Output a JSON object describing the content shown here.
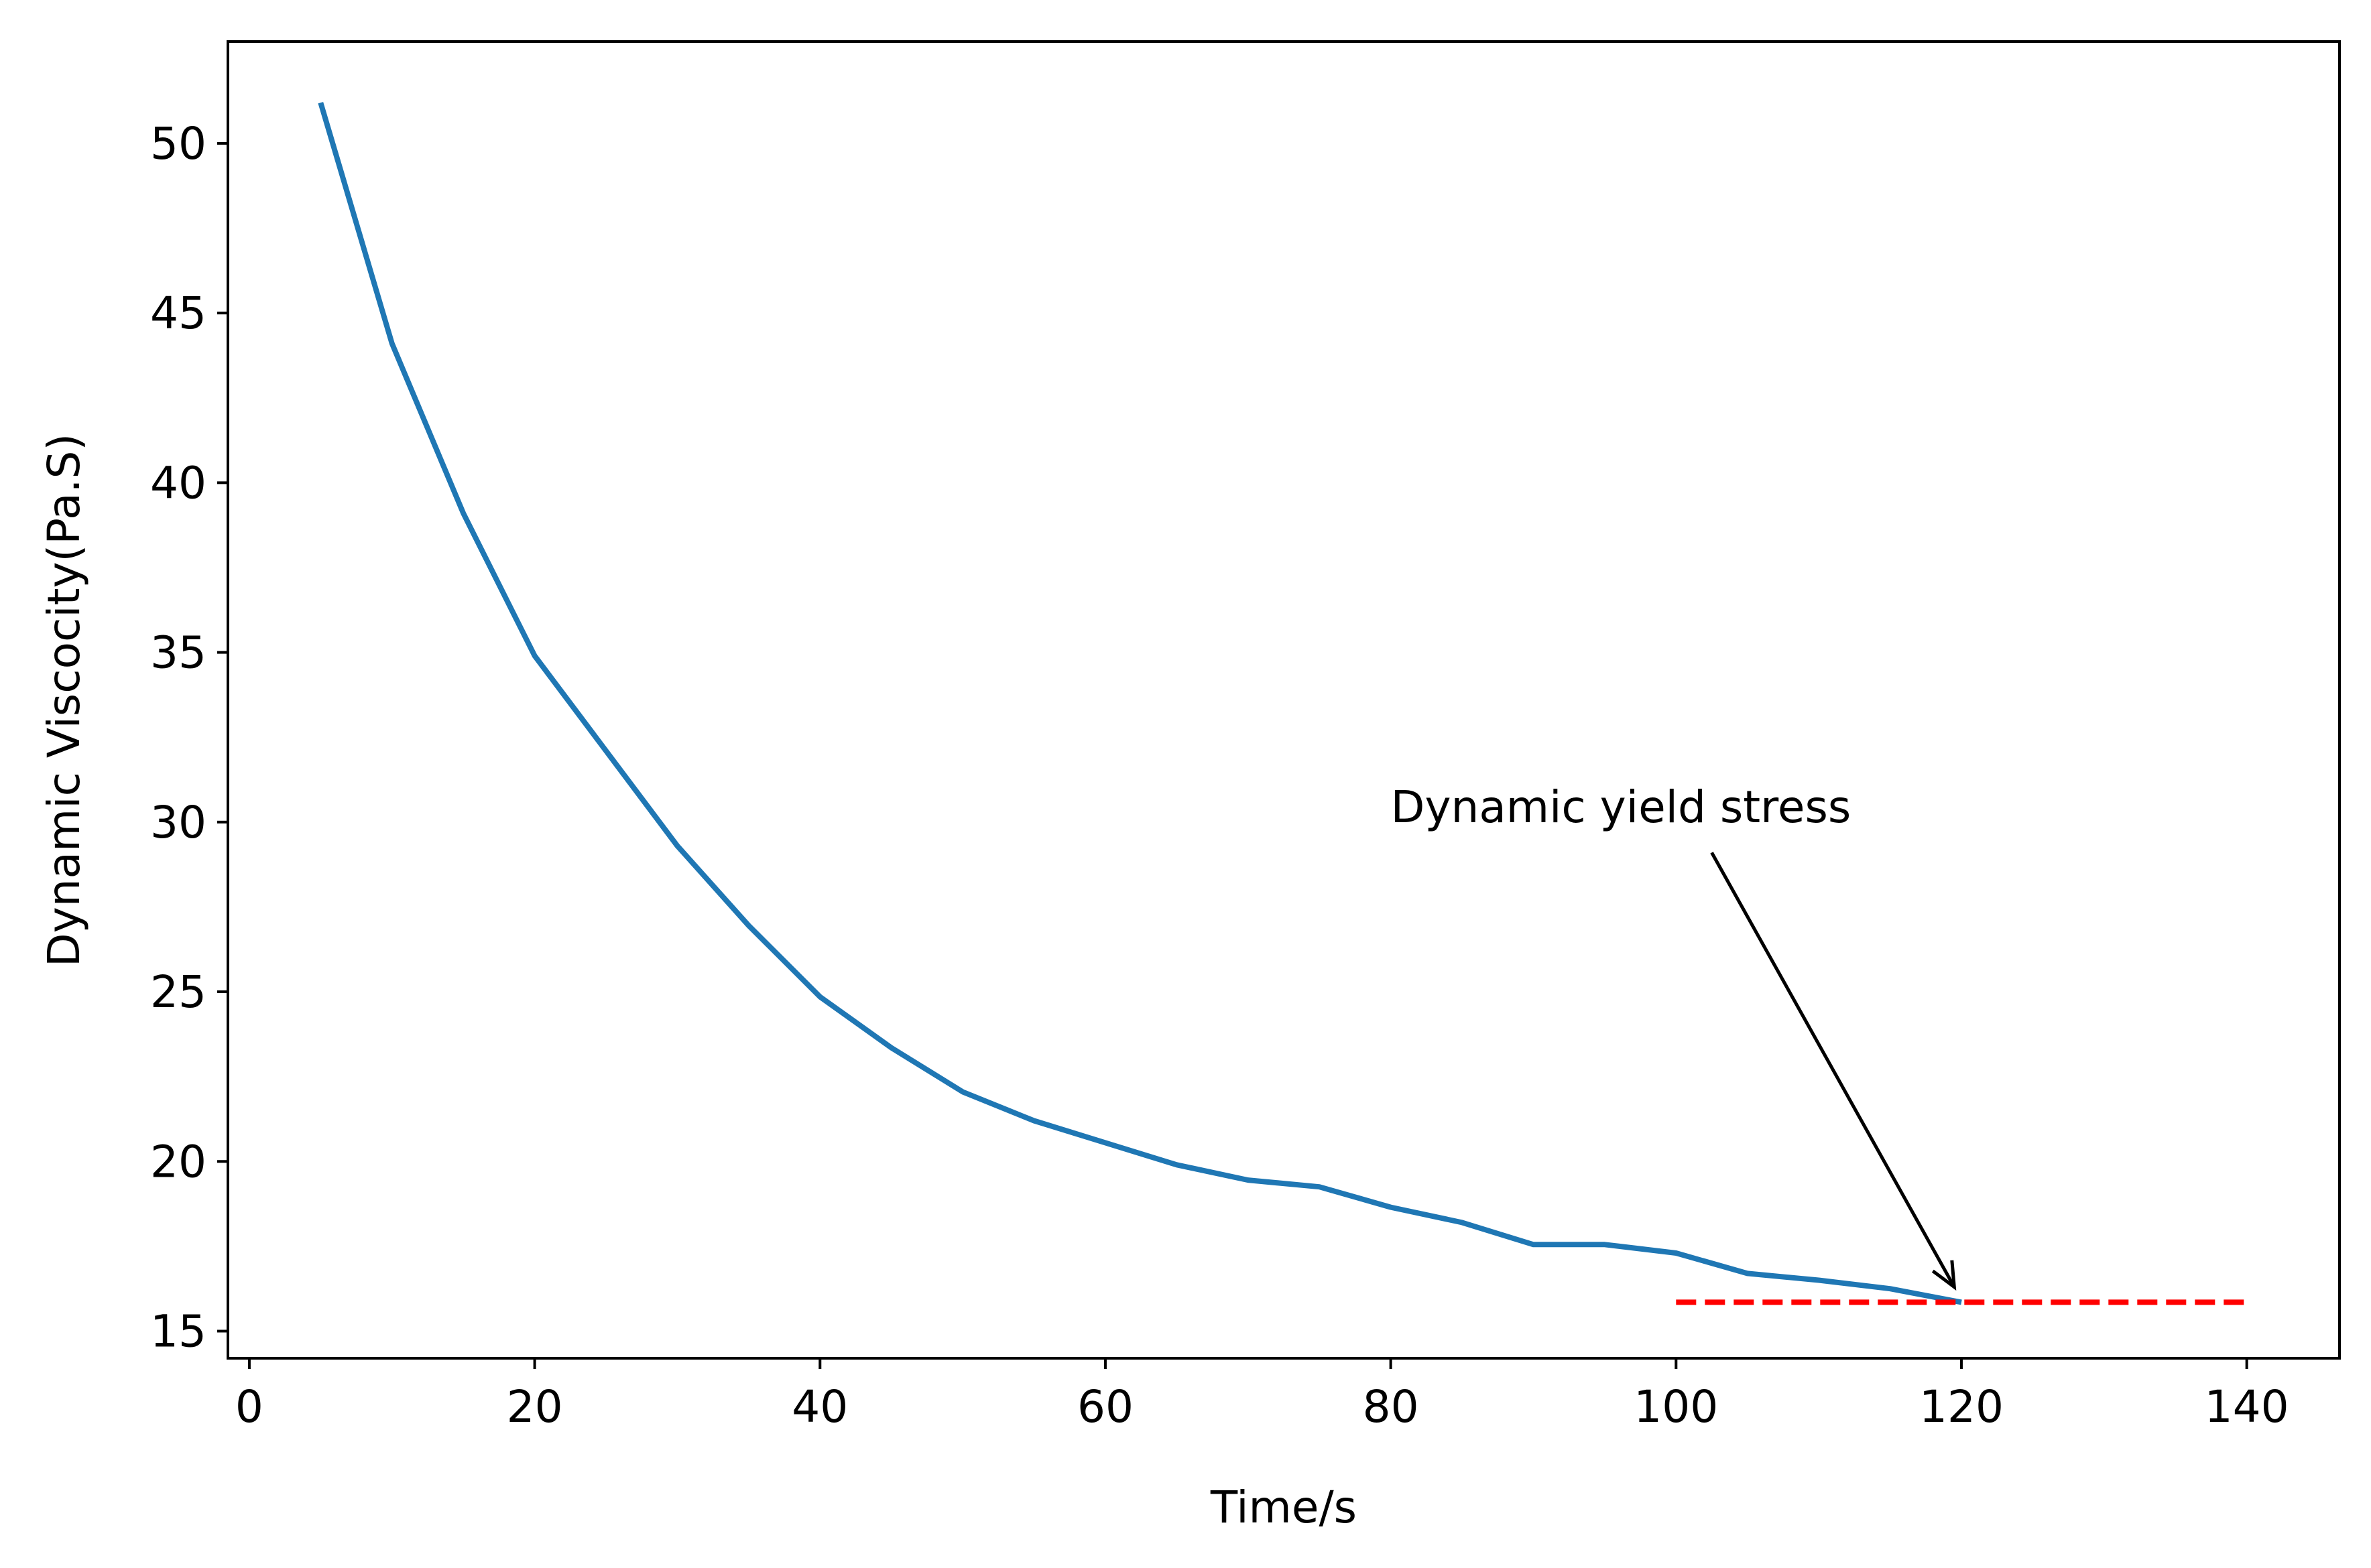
{
  "chart_data": {
    "type": "line",
    "title": "",
    "xlabel": "Time/s",
    "ylabel": "Dynamic Viscocity(Pa.S)",
    "xlim": [
      -1.5,
      146.5
    ],
    "ylim": [
      14.2,
      53.0
    ],
    "xticks": [
      0,
      20,
      40,
      60,
      80,
      100,
      120,
      140
    ],
    "yticks": [
      15,
      20,
      25,
      30,
      35,
      40,
      45,
      50
    ],
    "grid": false,
    "legend": "none",
    "series": [
      {
        "color": "#1f77b4",
        "style": "solid",
        "x": [
          5,
          10,
          15,
          20,
          25,
          30,
          35,
          40,
          45,
          50,
          55,
          60,
          65,
          70,
          75,
          80,
          85,
          90,
          95,
          100,
          105,
          110,
          115,
          120
        ],
        "y": [
          51.2,
          44.1,
          39.1,
          34.9,
          32.1,
          29.3,
          26.95,
          24.85,
          23.35,
          22.05,
          21.2,
          20.55,
          19.9,
          19.45,
          19.25,
          18.65,
          18.2,
          17.55,
          17.55,
          17.3,
          16.7,
          16.5,
          16.25,
          15.85
        ]
      },
      {
        "color": "#ff0000",
        "style": "dashed",
        "x": [
          100,
          140
        ],
        "y": [
          15.85,
          15.85
        ]
      }
    ],
    "annotations": [
      {
        "text": "Dynamic yield stress",
        "text_x": 80,
        "text_y": 30,
        "arrow_from_x": 102.5,
        "arrow_from_y": 29.1,
        "arrow_to_x": 119.5,
        "arrow_to_y": 16.3
      }
    ]
  }
}
